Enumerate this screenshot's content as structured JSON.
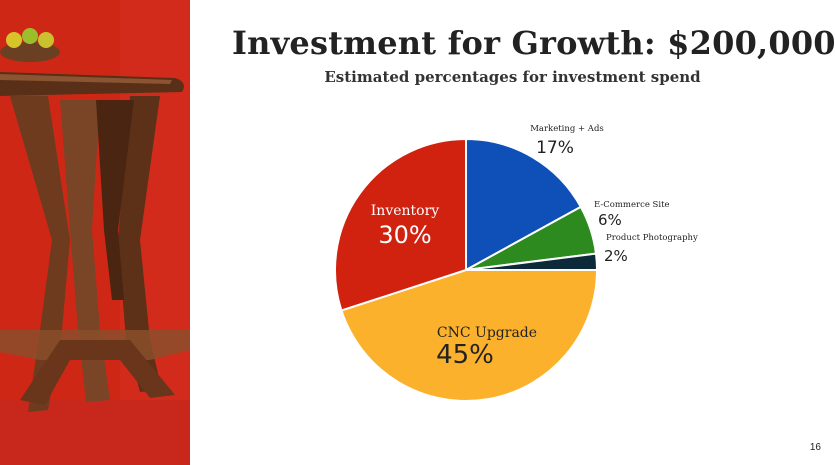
{
  "slide": {
    "title": "Investment for Growth: $200,000",
    "subtitle": "Estimated percentages for investment spend",
    "number": "16"
  },
  "photo": {
    "description_icon": "walnut-side-table-photo"
  },
  "chart_data": {
    "type": "pie",
    "title": "",
    "start_angle_deg": 0,
    "direction": "clockwise",
    "slices": [
      {
        "label": "Marketing + Ads",
        "value": 17,
        "value_label": "17%",
        "color": "#0f4fb8",
        "label_place": "outside"
      },
      {
        "label": "E-Commerce Site",
        "value": 6,
        "value_label": "6%",
        "color": "#2d8a1f",
        "label_place": "outside"
      },
      {
        "label": "Product Photography",
        "value": 2,
        "value_label": "2%",
        "color": "#0d2a3a",
        "label_place": "outside"
      },
      {
        "label": "CNC Upgrade",
        "value": 45,
        "value_label": "45%",
        "color": "#fbb12c",
        "label_place": "inside"
      },
      {
        "label": "Inventory",
        "value": 30,
        "value_label": "30%",
        "color": "#d1210f",
        "label_place": "inside"
      }
    ]
  }
}
